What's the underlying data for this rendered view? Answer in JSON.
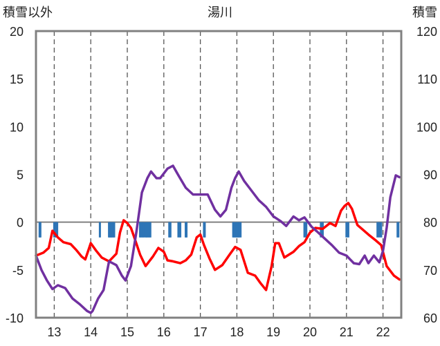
{
  "chart_data": {
    "type": "line",
    "title": "湯川",
    "left_axis_title": "積雪以外",
    "right_axis_title": "積雪",
    "x_tick_labels": [
      "13",
      "14",
      "15",
      "16",
      "17",
      "18",
      "19",
      "20",
      "21",
      "22"
    ],
    "x_tick_values": [
      13,
      14,
      15,
      16,
      17,
      18,
      19,
      20,
      21,
      22
    ],
    "xlim": [
      12.5,
      22.5
    ],
    "y_left": {
      "ylim": [
        -10,
        20
      ],
      "ticks": [
        -10,
        -5,
        0,
        5,
        10,
        15,
        20
      ],
      "tick_labels": [
        "-10",
        "-5",
        "0",
        "5",
        "10",
        "15",
        "20"
      ]
    },
    "y_right": {
      "ylim": [
        60,
        120
      ],
      "ticks": [
        60,
        70,
        80,
        90,
        100,
        110,
        120
      ],
      "tick_labels": [
        "60",
        "70",
        "80",
        "90",
        "100",
        "110",
        "120"
      ]
    },
    "grid": {
      "vertical_dashed": true,
      "zero_line": true
    },
    "colors": {
      "red_series": "#ff0000",
      "purple_series": "#7030a0",
      "blue_marks": "#2e75b6",
      "frame": "#808080"
    },
    "series": [
      {
        "color": "#ff0000",
        "axis": "left",
        "x": [
          12.5,
          12.7,
          12.85,
          12.95,
          13.1,
          13.25,
          13.45,
          13.6,
          13.75,
          13.85,
          14.0,
          14.15,
          14.3,
          14.5,
          14.7,
          14.8,
          14.9,
          15.0,
          15.1,
          15.2,
          15.35,
          15.5,
          15.7,
          15.85,
          16.0,
          16.1,
          16.25,
          16.45,
          16.6,
          16.75,
          16.9,
          17.0,
          17.1,
          17.25,
          17.4,
          17.6,
          17.8,
          17.95,
          18.1,
          18.3,
          18.5,
          18.65,
          18.8,
          18.95,
          19.05,
          19.15,
          19.3,
          19.55,
          19.7,
          19.85,
          20.0,
          20.15,
          20.35,
          20.55,
          20.7,
          20.85,
          20.95,
          21.05,
          21.15,
          21.3,
          21.45,
          21.6,
          21.8,
          21.95,
          22.1,
          22.3,
          22.45
        ],
        "values": [
          -3.5,
          -3.2,
          -2.7,
          -0.9,
          -1.6,
          -2.1,
          -2.3,
          -2.9,
          -3.6,
          -3.9,
          -2.2,
          -3.0,
          -3.7,
          -4.1,
          -3.3,
          -1.1,
          0.2,
          -0.1,
          -0.6,
          -1.7,
          -3.4,
          -4.6,
          -3.6,
          -2.7,
          -3.1,
          -4.0,
          -4.1,
          -4.3,
          -4.0,
          -3.4,
          -1.6,
          -1.3,
          -2.4,
          -3.8,
          -5.0,
          -4.5,
          -3.4,
          -2.6,
          -2.9,
          -5.3,
          -5.6,
          -6.4,
          -7.1,
          -4.6,
          -2.2,
          -2.2,
          -3.7,
          -3.1,
          -2.5,
          -2.1,
          -1.1,
          -0.6,
          -0.7,
          -0.1,
          -0.4,
          1.2,
          1.7,
          2.0,
          1.4,
          -0.3,
          -0.8,
          -1.3,
          -1.9,
          -2.4,
          -4.6,
          -5.6,
          -6.0
        ]
      },
      {
        "color": "#7030a0",
        "axis": "left",
        "x": [
          12.5,
          12.65,
          12.8,
          12.95,
          13.1,
          13.3,
          13.5,
          13.7,
          13.9,
          14.0,
          14.05,
          14.2,
          14.35,
          14.5,
          14.7,
          14.85,
          14.95,
          15.1,
          15.25,
          15.4,
          15.55,
          15.65,
          15.8,
          15.9,
          16.1,
          16.25,
          16.4,
          16.6,
          16.8,
          17.0,
          17.2,
          17.4,
          17.55,
          17.7,
          17.85,
          17.95,
          18.05,
          18.2,
          18.4,
          18.6,
          18.8,
          19.0,
          19.2,
          19.35,
          19.55,
          19.7,
          19.85,
          20.05,
          20.2,
          20.4,
          20.6,
          20.8,
          21.0,
          21.2,
          21.35,
          21.5,
          21.6,
          21.75,
          21.9,
          22.0,
          22.1,
          22.2,
          22.35,
          22.45
        ],
        "values": [
          -3.5,
          -5.0,
          -6.1,
          -7.0,
          -6.6,
          -6.9,
          -8.0,
          -8.6,
          -9.3,
          -9.5,
          -9.3,
          -8.0,
          -7.1,
          -4.1,
          -4.5,
          -5.6,
          -6.1,
          -4.6,
          -1.0,
          3.1,
          4.6,
          5.3,
          4.6,
          4.6,
          5.6,
          5.9,
          4.9,
          3.6,
          2.9,
          2.9,
          2.9,
          1.3,
          0.6,
          1.3,
          3.6,
          4.6,
          5.3,
          4.3,
          3.3,
          2.3,
          1.6,
          0.6,
          0.1,
          -0.4,
          0.6,
          0.2,
          0.5,
          -0.5,
          -1.0,
          -1.7,
          -2.4,
          -3.2,
          -3.5,
          -4.3,
          -4.4,
          -3.5,
          -4.3,
          -3.5,
          -4.2,
          -3.0,
          -0.6,
          2.6,
          4.9,
          4.7
        ]
      }
    ],
    "marks": {
      "color": "#2e75b6",
      "x": [
        12.6,
        12.62,
        13.0,
        13.02,
        13.04,
        13.06,
        13.08,
        14.25,
        14.5,
        14.52,
        14.54,
        14.56,
        14.58,
        14.62,
        14.64,
        15.35,
        15.38,
        15.42,
        15.45,
        15.5,
        15.53,
        15.56,
        15.6,
        15.63,
        16.15,
        16.18,
        16.4,
        16.45,
        16.6,
        16.62,
        17.1,
        17.12,
        17.9,
        17.93,
        17.97,
        18.0,
        18.03,
        18.06,
        18.1,
        19.85,
        19.9,
        20.3,
        20.35,
        21.0,
        21.05,
        21.85,
        21.9,
        21.95,
        22.4,
        22.42
      ],
      "y_top": 0,
      "y_bottom": -1.6
    }
  }
}
